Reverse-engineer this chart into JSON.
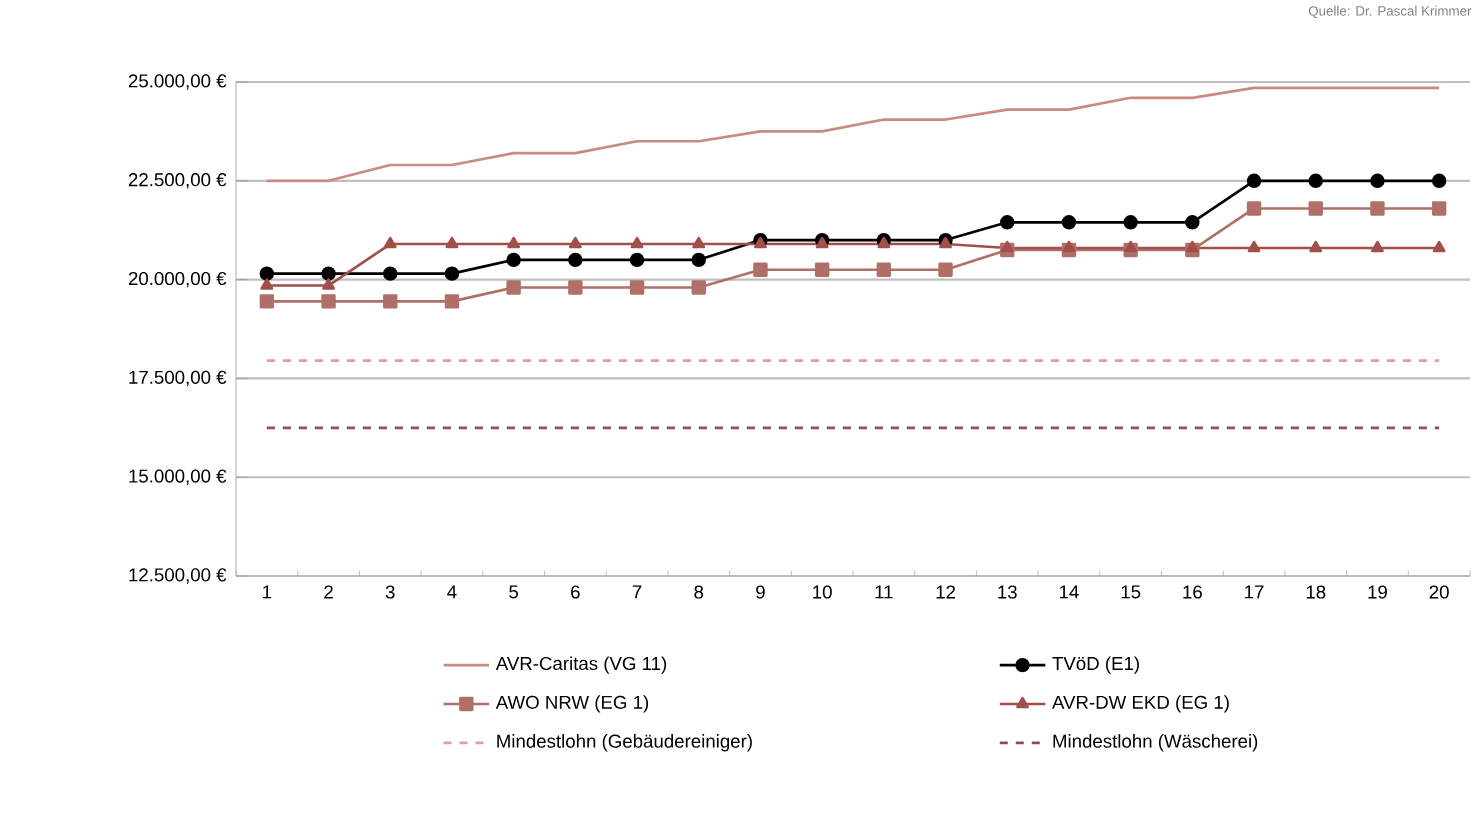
{
  "chart_data": {
    "type": "line",
    "categories": [
      "1",
      "2",
      "3",
      "4",
      "5",
      "6",
      "7",
      "8",
      "9",
      "10",
      "11",
      "12",
      "13",
      "14",
      "15",
      "16",
      "17",
      "18",
      "19",
      "20"
    ],
    "series": [
      {
        "name": "AVR-Caritas (VG 11)",
        "color": "#c98a80",
        "marker": "none",
        "line_style": "solid",
        "values": [
          22500,
          22500,
          22900,
          22900,
          23200,
          23200,
          23500,
          23500,
          23750,
          23750,
          24050,
          24050,
          24300,
          24300,
          24600,
          24600,
          24850,
          24850,
          24850,
          24850
        ]
      },
      {
        "name": "TVöD (E1)",
        "color": "#000000",
        "marker": "circle",
        "line_style": "solid",
        "values": [
          20150,
          20150,
          20150,
          20150,
          20500,
          20500,
          20500,
          20500,
          21000,
          21000,
          21000,
          21000,
          21450,
          21450,
          21450,
          21450,
          22500,
          22500,
          22500,
          22500
        ]
      },
      {
        "name": "AWO NRW (EG 1)",
        "color": "#b07068",
        "marker": "square",
        "line_style": "solid",
        "values": [
          19450,
          19450,
          19450,
          19450,
          19800,
          19800,
          19800,
          19800,
          20250,
          20250,
          20250,
          20250,
          20750,
          20750,
          20750,
          20750,
          21800,
          21800,
          21800,
          21800
        ]
      },
      {
        "name": "AVR-DW EKD (EG 1)",
        "color": "#a0504a",
        "marker": "triangle",
        "line_style": "solid",
        "values": [
          19850,
          19850,
          20900,
          20900,
          20900,
          20900,
          20900,
          20900,
          20900,
          20900,
          20900,
          20900,
          20800,
          20800,
          20800,
          20800,
          20800,
          20800,
          20800,
          20800
        ]
      },
      {
        "name": "Mindestlohn (Gebäudereiniger)",
        "color": "#e0a0a0",
        "marker": "none",
        "line_style": "dashed",
        "values": [
          17950,
          17950,
          17950,
          17950,
          17950,
          17950,
          17950,
          17950,
          17950,
          17950,
          17950,
          17950,
          17950,
          17950,
          17950,
          17950,
          17950,
          17950,
          17950,
          17950
        ]
      },
      {
        "name": "Mindestlohn (Wäscherei)",
        "color": "#8a5050",
        "marker": "none",
        "line_style": "dashed",
        "values": [
          16250,
          16250,
          16250,
          16250,
          16250,
          16250,
          16250,
          16250,
          16250,
          16250,
          16250,
          16250,
          16250,
          16250,
          16250,
          16250,
          16250,
          16250,
          16250,
          16250
        ]
      }
    ],
    "ylim": [
      12500,
      25000
    ],
    "yticks": [
      {
        "value": 12500,
        "label": "12.500,00 €"
      },
      {
        "value": 15000,
        "label": "15.000,00 €"
      },
      {
        "value": 17500,
        "label": "17.500,00 €"
      },
      {
        "value": 20000,
        "label": "20.000,00 €"
      },
      {
        "value": 22500,
        "label": "22.500,00 €"
      },
      {
        "value": 25000,
        "label": "25.000,00 €"
      }
    ],
    "grid": "y",
    "legend": "bottom",
    "annotations": [
      "Quelle: Dr. Pascal Krimmer"
    ]
  }
}
